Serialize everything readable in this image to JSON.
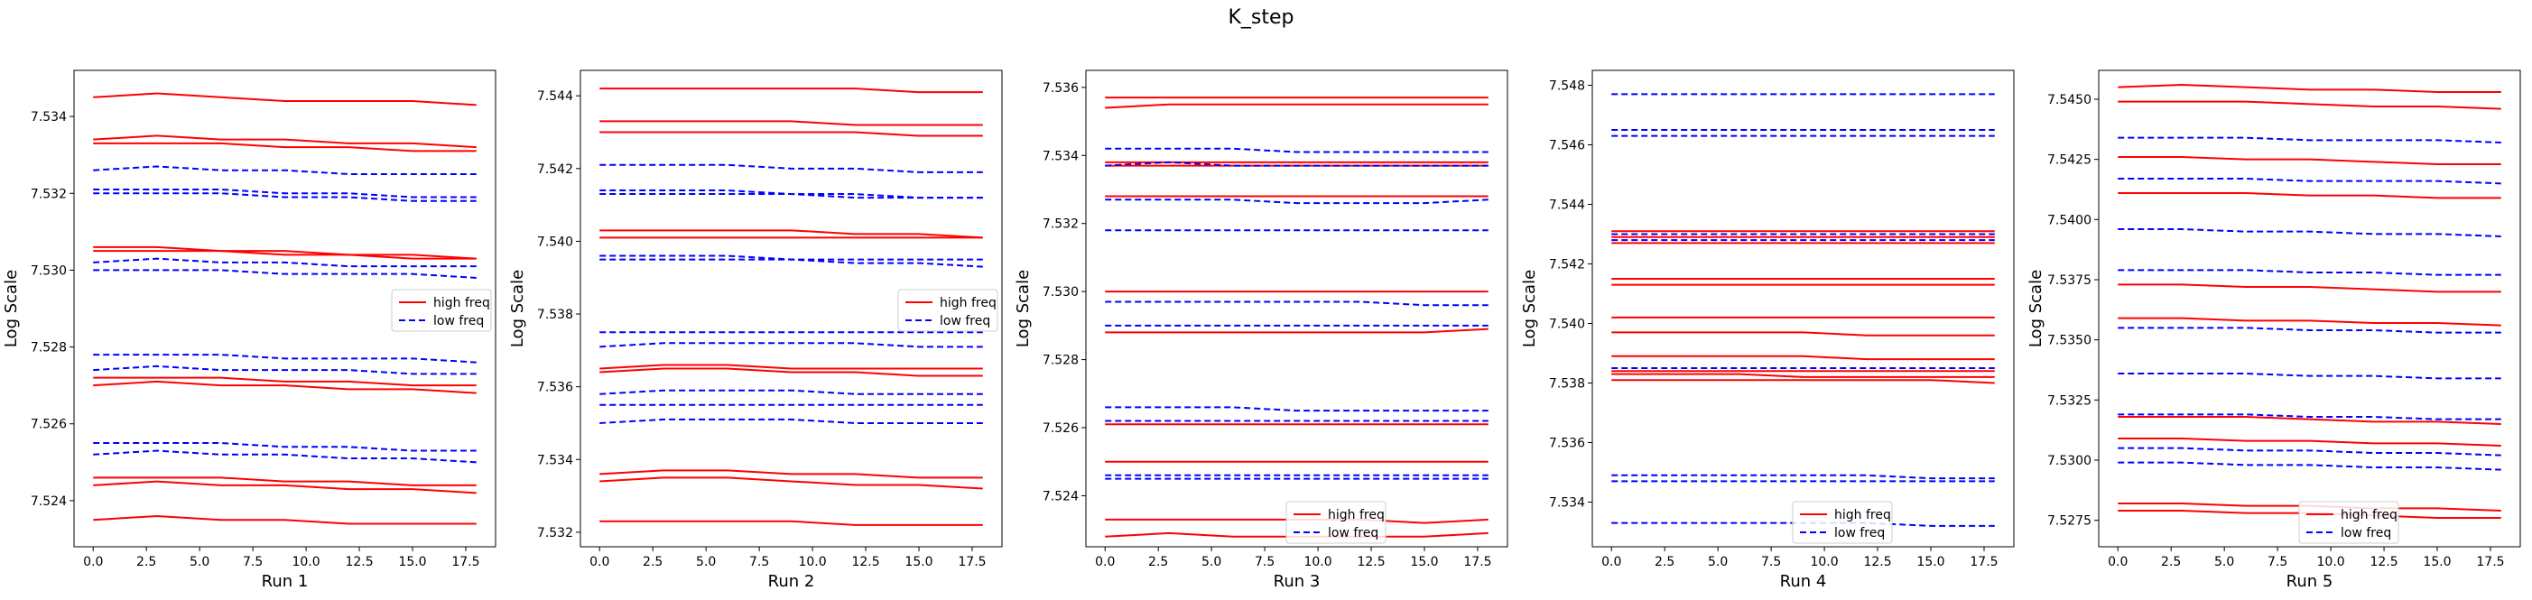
{
  "figure": {
    "suptitle": "K_step"
  },
  "legend_labels": {
    "high": "high freq",
    "low": "low freq"
  },
  "colors": {
    "high": "#ff0000",
    "low": "#0000ff"
  },
  "chart_data": [
    {
      "type": "line",
      "xlabel": "Run 1",
      "ylabel": "Log Scale",
      "xlim": [
        -0.9,
        18.9
      ],
      "ylim": [
        7.5228,
        7.5352
      ],
      "xticks": [
        0.0,
        2.5,
        5.0,
        7.5,
        10.0,
        12.5,
        15.0,
        17.5
      ],
      "yticks": [
        7.524,
        7.526,
        7.528,
        7.53,
        7.532,
        7.534
      ],
      "ytick_decimals": 3,
      "legend_position": "center-right",
      "x": [
        0,
        3,
        6,
        9,
        12,
        15,
        18
      ],
      "high": [
        [
          7.5345,
          7.5346,
          7.5345,
          7.5344,
          7.5344,
          7.5344,
          7.5343
        ],
        [
          7.5334,
          7.5335,
          7.5334,
          7.5334,
          7.5333,
          7.5333,
          7.5332
        ],
        [
          7.5333,
          7.5333,
          7.5333,
          7.5332,
          7.5332,
          7.5331,
          7.5331
        ],
        [
          7.5306,
          7.5306,
          7.5305,
          7.5305,
          7.5304,
          7.5304,
          7.5303
        ],
        [
          7.5305,
          7.5305,
          7.5305,
          7.5304,
          7.5304,
          7.5303,
          7.5303
        ],
        [
          7.5272,
          7.5272,
          7.5272,
          7.5271,
          7.5271,
          7.527,
          7.527
        ],
        [
          7.527,
          7.5271,
          7.527,
          7.527,
          7.5269,
          7.5269,
          7.5268
        ],
        [
          7.5246,
          7.5246,
          7.5246,
          7.5245,
          7.5245,
          7.5244,
          7.5244
        ],
        [
          7.5244,
          7.5245,
          7.5244,
          7.5244,
          7.5243,
          7.5243,
          7.5242
        ],
        [
          7.5235,
          7.5236,
          7.5235,
          7.5235,
          7.5234,
          7.5234,
          7.5234
        ]
      ],
      "low": [
        [
          7.5326,
          7.5327,
          7.5326,
          7.5326,
          7.5325,
          7.5325,
          7.5325
        ],
        [
          7.5321,
          7.5321,
          7.5321,
          7.532,
          7.532,
          7.5319,
          7.5319
        ],
        [
          7.532,
          7.532,
          7.532,
          7.5319,
          7.5319,
          7.5318,
          7.5318
        ],
        [
          7.5302,
          7.5303,
          7.5302,
          7.5302,
          7.5301,
          7.5301,
          7.5301
        ],
        [
          7.53,
          7.53,
          7.53,
          7.5299,
          7.5299,
          7.5299,
          7.5298
        ],
        [
          7.5278,
          7.5278,
          7.5278,
          7.5277,
          7.5277,
          7.5277,
          7.5276
        ],
        [
          7.5274,
          7.5275,
          7.5274,
          7.5274,
          7.5274,
          7.5273,
          7.5273
        ],
        [
          7.5255,
          7.5255,
          7.5255,
          7.5254,
          7.5254,
          7.5253,
          7.5253
        ],
        [
          7.5252,
          7.5253,
          7.5252,
          7.5252,
          7.5251,
          7.5251,
          7.525
        ]
      ]
    },
    {
      "type": "line",
      "xlabel": "Run 2",
      "ylabel": "Log Scale",
      "xlim": [
        -0.9,
        18.9
      ],
      "ylim": [
        7.5316,
        7.5447
      ],
      "xticks": [
        0.0,
        2.5,
        5.0,
        7.5,
        10.0,
        12.5,
        15.0,
        17.5
      ],
      "yticks": [
        7.532,
        7.534,
        7.536,
        7.538,
        7.54,
        7.542,
        7.544
      ],
      "ytick_decimals": 3,
      "legend_position": "center-right",
      "x": [
        0,
        3,
        6,
        9,
        12,
        15,
        18
      ],
      "high": [
        [
          7.5442,
          7.5442,
          7.5442,
          7.5442,
          7.5442,
          7.5441,
          7.5441
        ],
        [
          7.5433,
          7.5433,
          7.5433,
          7.5433,
          7.5432,
          7.5432,
          7.5432
        ],
        [
          7.543,
          7.543,
          7.543,
          7.543,
          7.543,
          7.5429,
          7.5429
        ],
        [
          7.5403,
          7.5403,
          7.5403,
          7.5403,
          7.5402,
          7.5402,
          7.5401
        ],
        [
          7.5401,
          7.5401,
          7.5401,
          7.5401,
          7.5401,
          7.5401,
          7.5401
        ],
        [
          7.5365,
          7.5366,
          7.5366,
          7.5365,
          7.5365,
          7.5365,
          7.5365
        ],
        [
          7.5364,
          7.5365,
          7.5365,
          7.5364,
          7.5364,
          7.5363,
          7.5363
        ],
        [
          7.5336,
          7.5337,
          7.5337,
          7.5336,
          7.5336,
          7.5335,
          7.5335
        ],
        [
          7.5334,
          7.5335,
          7.5335,
          7.5334,
          7.5333,
          7.5333,
          7.5332
        ],
        [
          7.5323,
          7.5323,
          7.5323,
          7.5323,
          7.5322,
          7.5322,
          7.5322
        ]
      ],
      "low": [
        [
          7.5421,
          7.5421,
          7.5421,
          7.542,
          7.542,
          7.5419,
          7.5419
        ],
        [
          7.5414,
          7.5414,
          7.5414,
          7.5413,
          7.5413,
          7.5412,
          7.5412
        ],
        [
          7.5413,
          7.5413,
          7.5413,
          7.5413,
          7.5412,
          7.5412,
          7.5412
        ],
        [
          7.5396,
          7.5396,
          7.5396,
          7.5395,
          7.5395,
          7.5395,
          7.5395
        ],
        [
          7.5395,
          7.5395,
          7.5395,
          7.5395,
          7.5394,
          7.5394,
          7.5393
        ],
        [
          7.5375,
          7.5375,
          7.5375,
          7.5375,
          7.5375,
          7.5375,
          7.5375
        ],
        [
          7.5371,
          7.5372,
          7.5372,
          7.5372,
          7.5372,
          7.5371,
          7.5371
        ],
        [
          7.5358,
          7.5359,
          7.5359,
          7.5359,
          7.5358,
          7.5358,
          7.5358
        ],
        [
          7.5355,
          7.5355,
          7.5355,
          7.5355,
          7.5355,
          7.5355,
          7.5355
        ],
        [
          7.535,
          7.5351,
          7.5351,
          7.5351,
          7.535,
          7.535,
          7.535
        ]
      ]
    },
    {
      "type": "line",
      "xlabel": "Run 3",
      "ylabel": "Log Scale",
      "xlim": [
        -0.9,
        18.9
      ],
      "ylim": [
        7.5225,
        7.5365
      ],
      "xticks": [
        0.0,
        2.5,
        5.0,
        7.5,
        10.0,
        12.5,
        15.0,
        17.5
      ],
      "yticks": [
        7.524,
        7.526,
        7.528,
        7.53,
        7.532,
        7.534,
        7.536
      ],
      "ytick_decimals": 3,
      "legend_position": "bottom-center",
      "x": [
        0,
        3,
        6,
        9,
        12,
        15,
        18
      ],
      "high": [
        [
          7.5357,
          7.5357,
          7.5357,
          7.5357,
          7.5357,
          7.5357,
          7.5357
        ],
        [
          7.5354,
          7.5355,
          7.5355,
          7.5355,
          7.5355,
          7.5355,
          7.5355
        ],
        [
          7.5338,
          7.5338,
          7.5338,
          7.5338,
          7.5338,
          7.5338,
          7.5338
        ],
        [
          7.5337,
          7.5337,
          7.5337,
          7.5337,
          7.5337,
          7.5337,
          7.5337
        ],
        [
          7.5328,
          7.5328,
          7.5328,
          7.5328,
          7.5328,
          7.5328,
          7.5328
        ],
        [
          7.53,
          7.53,
          7.53,
          7.53,
          7.53,
          7.53,
          7.53
        ],
        [
          7.5288,
          7.5288,
          7.5288,
          7.5288,
          7.5288,
          7.5288,
          7.5289
        ],
        [
          7.5261,
          7.5261,
          7.5261,
          7.5261,
          7.5261,
          7.5261,
          7.5261
        ],
        [
          7.525,
          7.525,
          7.525,
          7.525,
          7.525,
          7.525,
          7.525
        ],
        [
          7.5233,
          7.5233,
          7.5233,
          7.5233,
          7.5233,
          7.5232,
          7.5233
        ],
        [
          7.5228,
          7.5229,
          7.5228,
          7.5228,
          7.5228,
          7.5228,
          7.5229
        ]
      ],
      "low": [
        [
          7.5342,
          7.5342,
          7.5342,
          7.5341,
          7.5341,
          7.5341,
          7.5341
        ],
        [
          7.5337,
          7.5338,
          7.5337,
          7.5337,
          7.5337,
          7.5337,
          7.5337
        ],
        [
          7.5327,
          7.5327,
          7.5327,
          7.5326,
          7.5326,
          7.5326,
          7.5327
        ],
        [
          7.5318,
          7.5318,
          7.5318,
          7.5318,
          7.5318,
          7.5318,
          7.5318
        ],
        [
          7.5297,
          7.5297,
          7.5297,
          7.5297,
          7.5297,
          7.5296,
          7.5296
        ],
        [
          7.529,
          7.529,
          7.529,
          7.529,
          7.529,
          7.529,
          7.529
        ],
        [
          7.5266,
          7.5266,
          7.5266,
          7.5265,
          7.5265,
          7.5265,
          7.5265
        ],
        [
          7.5262,
          7.5262,
          7.5262,
          7.5262,
          7.5262,
          7.5262,
          7.5262
        ],
        [
          7.5246,
          7.5246,
          7.5246,
          7.5246,
          7.5246,
          7.5246,
          7.5246
        ],
        [
          7.5245,
          7.5245,
          7.5245,
          7.5245,
          7.5245,
          7.5245,
          7.5245
        ]
      ]
    },
    {
      "type": "line",
      "xlabel": "Run 4",
      "ylabel": "Log Scale",
      "xlim": [
        -0.9,
        18.9
      ],
      "ylim": [
        7.5325,
        7.5485
      ],
      "xticks": [
        0.0,
        2.5,
        5.0,
        7.5,
        10.0,
        12.5,
        15.0,
        17.5
      ],
      "yticks": [
        7.534,
        7.536,
        7.538,
        7.54,
        7.542,
        7.544,
        7.546,
        7.548
      ],
      "ytick_decimals": 3,
      "legend_position": "bottom-center",
      "x": [
        0,
        3,
        6,
        9,
        12,
        15,
        18
      ],
      "high": [
        [
          7.5431,
          7.5431,
          7.5431,
          7.5431,
          7.5431,
          7.5431,
          7.5431
        ],
        [
          7.5429,
          7.5429,
          7.5429,
          7.5429,
          7.5429,
          7.5429,
          7.5429
        ],
        [
          7.5427,
          7.5427,
          7.5427,
          7.5427,
          7.5427,
          7.5427,
          7.5427
        ],
        [
          7.5415,
          7.5415,
          7.5415,
          7.5415,
          7.5415,
          7.5415,
          7.5415
        ],
        [
          7.5413,
          7.5413,
          7.5413,
          7.5413,
          7.5413,
          7.5413,
          7.5413
        ],
        [
          7.5402,
          7.5402,
          7.5402,
          7.5402,
          7.5402,
          7.5402,
          7.5402
        ],
        [
          7.5397,
          7.5397,
          7.5397,
          7.5397,
          7.5396,
          7.5396,
          7.5396
        ],
        [
          7.5389,
          7.5389,
          7.5389,
          7.5389,
          7.5388,
          7.5388,
          7.5388
        ],
        [
          7.5384,
          7.5384,
          7.5384,
          7.5384,
          7.5384,
          7.5384,
          7.5384
        ],
        [
          7.5383,
          7.5383,
          7.5383,
          7.5382,
          7.5382,
          7.5382,
          7.5382
        ],
        [
          7.5381,
          7.5381,
          7.5381,
          7.5381,
          7.5381,
          7.5381,
          7.538
        ]
      ],
      "low": [
        [
          7.5477,
          7.5477,
          7.5477,
          7.5477,
          7.5477,
          7.5477,
          7.5477
        ],
        [
          7.5465,
          7.5465,
          7.5465,
          7.5465,
          7.5465,
          7.5465,
          7.5465
        ],
        [
          7.5463,
          7.5463,
          7.5463,
          7.5463,
          7.5463,
          7.5463,
          7.5463
        ],
        [
          7.543,
          7.543,
          7.543,
          7.543,
          7.543,
          7.543,
          7.543
        ],
        [
          7.5428,
          7.5428,
          7.5428,
          7.5428,
          7.5428,
          7.5428,
          7.5428
        ],
        [
          7.5385,
          7.5385,
          7.5385,
          7.5385,
          7.5385,
          7.5385,
          7.5385
        ],
        [
          7.5349,
          7.5349,
          7.5349,
          7.5349,
          7.5349,
          7.5348,
          7.5348
        ],
        [
          7.5347,
          7.5347,
          7.5347,
          7.5347,
          7.5347,
          7.5347,
          7.5347
        ],
        [
          7.5333,
          7.5333,
          7.5333,
          7.5333,
          7.5333,
          7.5332,
          7.5332
        ]
      ]
    },
    {
      "type": "line",
      "xlabel": "Run 5",
      "ylabel": "Log Scale",
      "xlim": [
        -0.9,
        18.9
      ],
      "ylim": [
        7.5264,
        7.5462
      ],
      "xticks": [
        0.0,
        2.5,
        5.0,
        7.5,
        10.0,
        12.5,
        15.0,
        17.5
      ],
      "yticks": [
        7.5275,
        7.53,
        7.5325,
        7.535,
        7.5375,
        7.54,
        7.5425,
        7.545
      ],
      "ytick_decimals": 4,
      "legend_position": "bottom-center",
      "x": [
        0,
        3,
        6,
        9,
        12,
        15,
        18
      ],
      "high": [
        [
          7.5455,
          7.5456,
          7.5455,
          7.5454,
          7.5454,
          7.5453,
          7.5453
        ],
        [
          7.5449,
          7.5449,
          7.5449,
          7.5448,
          7.5447,
          7.5447,
          7.5446
        ],
        [
          7.5426,
          7.5426,
          7.5425,
          7.5425,
          7.5424,
          7.5423,
          7.5423
        ],
        [
          7.5411,
          7.5411,
          7.5411,
          7.541,
          7.541,
          7.5409,
          7.5409
        ],
        [
          7.5373,
          7.5373,
          7.5372,
          7.5372,
          7.5371,
          7.537,
          7.537
        ],
        [
          7.5359,
          7.5359,
          7.5358,
          7.5358,
          7.5357,
          7.5357,
          7.5356
        ],
        [
          7.5318,
          7.5318,
          7.5318,
          7.5317,
          7.5316,
          7.5316,
          7.5315
        ],
        [
          7.5309,
          7.5309,
          7.5308,
          7.5308,
          7.5307,
          7.5307,
          7.5306
        ],
        [
          7.5282,
          7.5282,
          7.5281,
          7.5281,
          7.528,
          7.528,
          7.5279
        ],
        [
          7.5279,
          7.5279,
          7.5278,
          7.5278,
          7.5277,
          7.5276,
          7.5276
        ]
      ],
      "low": [
        [
          7.5434,
          7.5434,
          7.5434,
          7.5433,
          7.5433,
          7.5433,
          7.5432
        ],
        [
          7.5417,
          7.5417,
          7.5417,
          7.5416,
          7.5416,
          7.5416,
          7.5415
        ],
        [
          7.5396,
          7.5396,
          7.5395,
          7.5395,
          7.5394,
          7.5394,
          7.5393
        ],
        [
          7.5379,
          7.5379,
          7.5379,
          7.5378,
          7.5378,
          7.5377,
          7.5377
        ],
        [
          7.5355,
          7.5355,
          7.5355,
          7.5354,
          7.5354,
          7.5353,
          7.5353
        ],
        [
          7.5336,
          7.5336,
          7.5336,
          7.5335,
          7.5335,
          7.5334,
          7.5334
        ],
        [
          7.5319,
          7.5319,
          7.5319,
          7.5318,
          7.5318,
          7.5317,
          7.5317
        ],
        [
          7.5305,
          7.5305,
          7.5304,
          7.5304,
          7.5303,
          7.5303,
          7.5302
        ],
        [
          7.5299,
          7.5299,
          7.5298,
          7.5298,
          7.5297,
          7.5297,
          7.5296
        ]
      ]
    }
  ]
}
